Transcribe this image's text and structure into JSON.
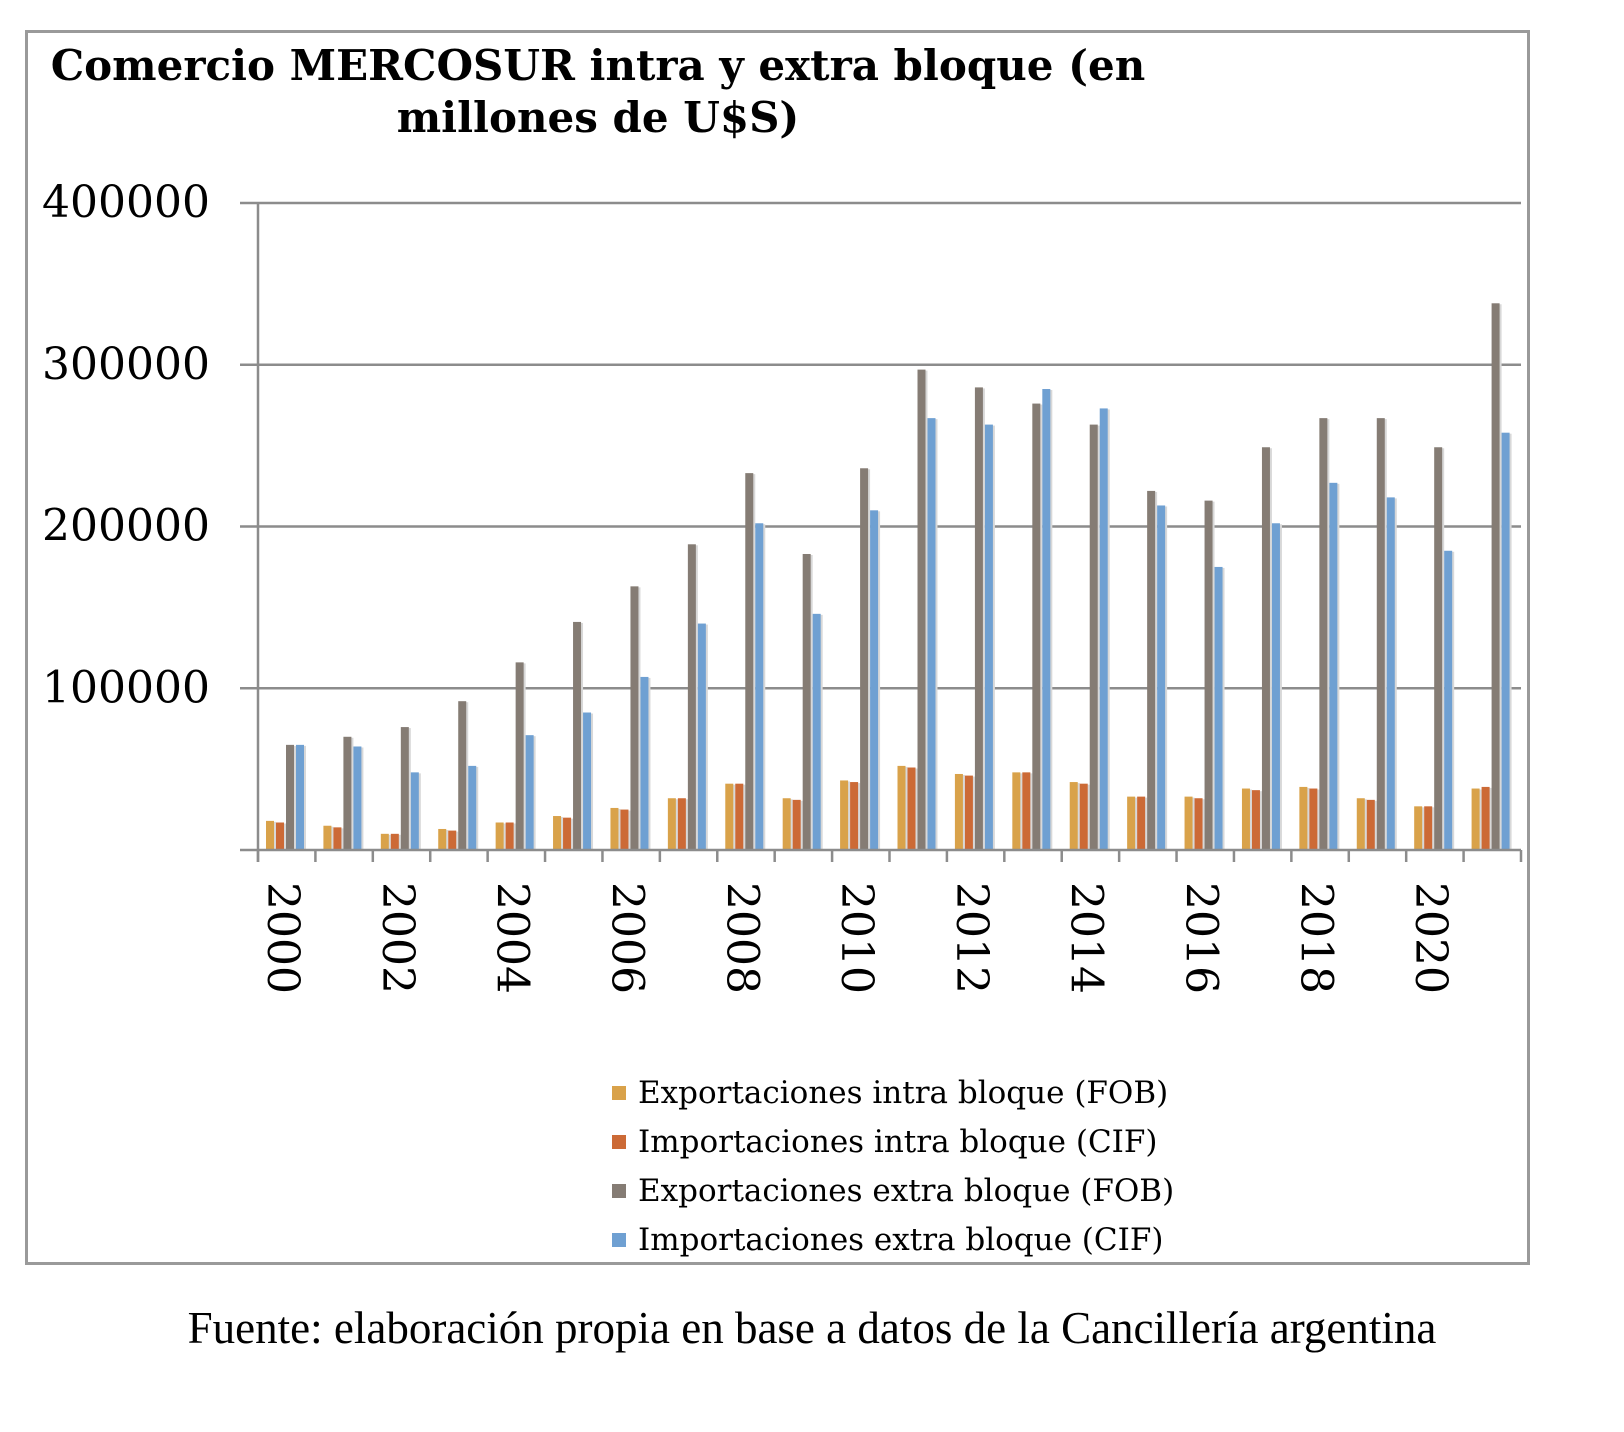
{
  "chart_data": {
    "type": "bar",
    "title": "Comercio MERCOSUR intra y extra bloque (en millones de U$S)",
    "x": [
      2000,
      2001,
      2002,
      2003,
      2004,
      2005,
      2006,
      2007,
      2008,
      2009,
      2010,
      2011,
      2012,
      2013,
      2014,
      2015,
      2016,
      2017,
      2018,
      2019,
      2020,
      2021
    ],
    "x_tick_labels": [
      "2000",
      "2002",
      "2004",
      "2006",
      "2008",
      "2010",
      "2012",
      "2014",
      "2016",
      "2018",
      "2020"
    ],
    "y_tick_labels": [
      "400000",
      "300000",
      "200000",
      "100000"
    ],
    "ylim": [
      0,
      400000
    ],
    "y_ticks": [
      0,
      100000,
      200000,
      300000,
      400000
    ],
    "grid": true,
    "legend_position": "bottom",
    "series": [
      {
        "name": "Exportaciones intra bloque (FOB)",
        "color": "#d9a24a",
        "values": [
          18000,
          15000,
          10000,
          13000,
          17000,
          21000,
          26000,
          32000,
          41000,
          32000,
          43000,
          52000,
          47000,
          48000,
          42000,
          33000,
          33000,
          38000,
          39000,
          32000,
          27000,
          38000
        ]
      },
      {
        "name": "Importaciones intra bloque (CIF)",
        "color": "#cc6a36",
        "values": [
          17000,
          14000,
          10000,
          12000,
          17000,
          20000,
          25000,
          32000,
          41000,
          31000,
          42000,
          51000,
          46000,
          48000,
          41000,
          33000,
          32000,
          37000,
          38000,
          31000,
          27000,
          39000
        ]
      },
      {
        "name": "Exportaciones extra bloque (FOB)",
        "color": "#857c74",
        "values": [
          65000,
          70000,
          76000,
          92000,
          116000,
          141000,
          163000,
          189000,
          233000,
          183000,
          236000,
          297000,
          286000,
          276000,
          263000,
          222000,
          216000,
          249000,
          267000,
          267000,
          249000,
          338000
        ]
      },
      {
        "name": "Importaciones extra bloque (CIF)",
        "color": "#6fa0d2",
        "values": [
          65000,
          64000,
          48000,
          52000,
          71000,
          85000,
          107000,
          140000,
          202000,
          146000,
          210000,
          267000,
          263000,
          285000,
          273000,
          213000,
          175000,
          202000,
          227000,
          218000,
          185000,
          258000
        ]
      }
    ]
  },
  "source_note": "Fuente: elaboración propia en base a datos de la Cancillería argentina"
}
